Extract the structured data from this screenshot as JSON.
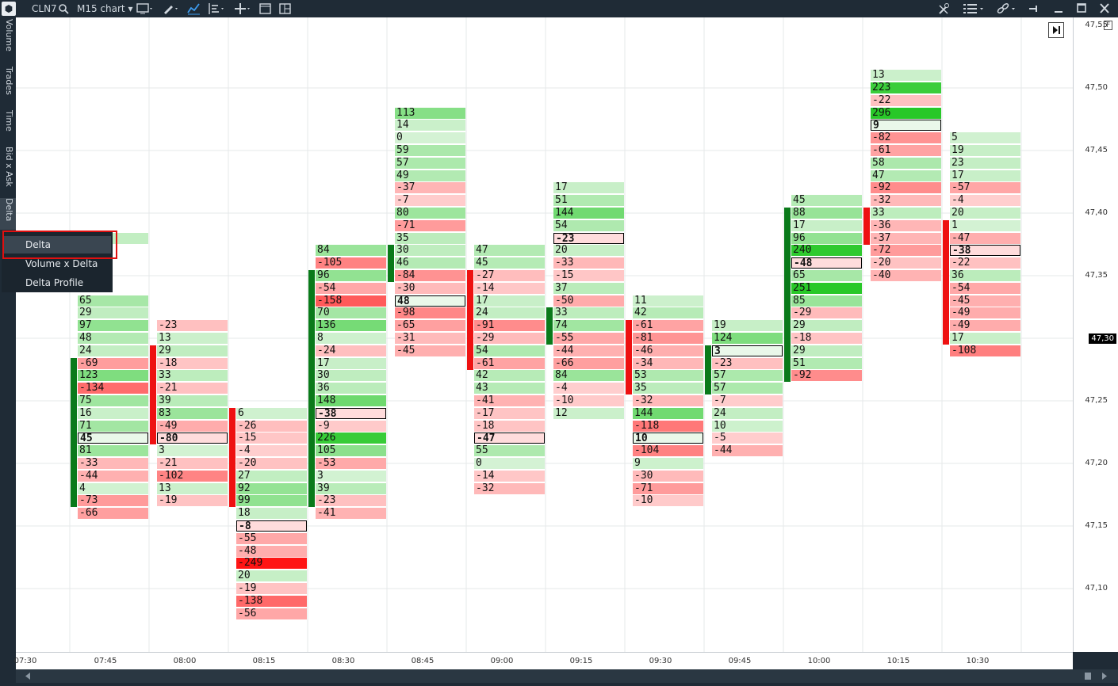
{
  "toolbar": {
    "symbol": "CLN7",
    "chart_type": "M15 chart",
    "chart_type_arrow": "▾",
    "icons": [
      "search-icon",
      "monitor-icon",
      "pencil-icon",
      "line-chart-icon",
      "indicators-icon",
      "crosshair-icon",
      "window-icon",
      "layout-icon",
      "tools-icon",
      "list-icon",
      "link-icon",
      "pin-icon",
      "minimize-icon",
      "maximize-icon",
      "close-icon"
    ]
  },
  "left_tabs": [
    "Volume",
    "Trades",
    "Time",
    "Bid x Ask",
    "Delta"
  ],
  "menu": {
    "items": [
      "Delta",
      "Volume x Delta",
      "Delta Profile"
    ],
    "selected": "Delta"
  },
  "price_axis": {
    "labels": [
      "47,55",
      "47,50",
      "47,45",
      "47,40",
      "47,35",
      "47,30",
      "47,25",
      "47,20",
      "47,15",
      "47,10"
    ],
    "current_price": "47,30",
    "flag": "F"
  },
  "time_axis": {
    "labels": [
      "07:30",
      "07:45",
      "08:00",
      "08:15",
      "08:30",
      "08:45",
      "09:00",
      "09:15",
      "09:30",
      "09:45",
      "10:00",
      "10:15",
      "10:30"
    ]
  },
  "colors": {
    "pos_bar": "#0a7a1a",
    "neg_bar": "#ee1111"
  },
  "chart_data": {
    "type": "table",
    "description_units": "delta per price tick (0.01), top price first",
    "top_price": 47.51,
    "tick": 0.01,
    "clusters": [
      {
        "time": "07:45",
        "top": 47.38,
        "bar": "pos",
        "barTop": 47.28,
        "barBottom": 47.17,
        "poc": "45",
        "values": [
          "26",
          "",
          "",
          "",
          "",
          "65",
          "29",
          "97",
          "48",
          "24",
          "-69",
          "123",
          "-134",
          "75",
          "16",
          "71",
          "45",
          "81",
          "-33",
          "-44",
          "4",
          "-73",
          "-66"
        ]
      },
      {
        "time": "08:00",
        "top": 47.31,
        "bar": "neg",
        "barTop": 47.29,
        "barBottom": 47.22,
        "poc": "-80",
        "values": [
          "-23",
          "13",
          "29",
          "-18",
          "33",
          "-21",
          "39",
          "83",
          "-49",
          "-80",
          "3",
          "-21",
          "-102",
          "13",
          "-19"
        ]
      },
      {
        "time": "08:15",
        "top": 47.24,
        "bar": "neg",
        "barTop": 47.24,
        "barBottom": 47.17,
        "poc": "-8",
        "values": [
          "6",
          "-26",
          "-15",
          "-4",
          "-20",
          "27",
          "92",
          "99",
          "18",
          "-8",
          "-55",
          "-48",
          "-249",
          "20",
          "-19",
          "-138",
          "-56"
        ]
      },
      {
        "time": "08:30",
        "top": 47.37,
        "bar": "pos",
        "barTop": 47.35,
        "barBottom": 47.17,
        "poc": "-38",
        "values": [
          "84",
          "-105",
          "96",
          "-54",
          "-158",
          "70",
          "136",
          "8",
          "-24",
          "17",
          "30",
          "36",
          "148",
          "-38",
          "-9",
          "226",
          "105",
          "-53",
          "3",
          "39",
          "-23",
          "-41"
        ]
      },
      {
        "time": "08:45",
        "top": 47.48,
        "bar": "pos",
        "barTop": 47.37,
        "barBottom": 47.35,
        "poc": "48",
        "values": [
          "113",
          "14",
          "0",
          "59",
          "57",
          "49",
          "-37",
          "-7",
          "80",
          "-71",
          "35",
          "30",
          "46",
          "-84",
          "-30",
          "48",
          "-98",
          "-65",
          "-31",
          "-45"
        ]
      },
      {
        "time": "09:00",
        "top": 47.37,
        "bar": "neg",
        "barTop": 47.35,
        "barBottom": 47.28,
        "poc": "-47",
        "values": [
          "47",
          "45",
          "-27",
          "-14",
          "17",
          "24",
          "-91",
          "-29",
          "54",
          "-61",
          "42",
          "43",
          "-41",
          "-17",
          "-18",
          "-47",
          "55",
          "0",
          "-14",
          "-32"
        ]
      },
      {
        "time": "09:15",
        "top": 47.42,
        "bar": "pos",
        "barTop": 47.32,
        "barBottom": 47.3,
        "poc": "-23",
        "values": [
          "17",
          "51",
          "144",
          "54",
          "-23",
          "20",
          "-33",
          "-15",
          "37",
          "-50",
          "33",
          "74",
          "-55",
          "-44",
          "-66",
          "84",
          "-4",
          "-10",
          "12"
        ]
      },
      {
        "time": "09:30",
        "top": 47.33,
        "bar": "neg",
        "barTop": 47.31,
        "barBottom": 47.26,
        "poc": "10",
        "values": [
          "11",
          "42",
          "-61",
          "-81",
          "-46",
          "-34",
          "53",
          "35",
          "-32",
          "144",
          "-118",
          "10",
          "-104",
          "9",
          "-30",
          "-71",
          "-10"
        ]
      },
      {
        "time": "09:45",
        "top": 47.31,
        "bar": "pos",
        "barTop": 47.29,
        "barBottom": 47.26,
        "poc": "3",
        "values": [
          "19",
          "124",
          "3",
          "-23",
          "57",
          "57",
          "-7",
          "24",
          "10",
          "-5",
          "-44"
        ]
      },
      {
        "time": "10:00",
        "top": 47.41,
        "bar": "pos",
        "barTop": 47.4,
        "barBottom": 47.27,
        "poc": "-48",
        "values": [
          "45",
          "88",
          "17",
          "96",
          "240",
          "-48",
          "65",
          "251",
          "85",
          "-29",
          "29",
          "-18",
          "29",
          "51",
          "-92"
        ]
      },
      {
        "time": "10:15",
        "top": 47.51,
        "bar": "neg",
        "barTop": 47.4,
        "barBottom": 47.38,
        "poc": "9",
        "values": [
          "13",
          "223",
          "-22",
          "296",
          "9",
          "-82",
          "-61",
          "58",
          "47",
          "-92",
          "-32",
          "33",
          "-36",
          "-37",
          "-72",
          "-20",
          "-40"
        ]
      },
      {
        "time": "10:30",
        "top": 47.46,
        "bar": "neg",
        "barTop": 47.39,
        "barBottom": 47.3,
        "poc": "-38",
        "values": [
          "5",
          "19",
          "23",
          "17",
          "-57",
          "-4",
          "20",
          "1",
          "-47",
          "-38",
          "-22",
          "36",
          "-54",
          "-45",
          "-49",
          "-49",
          "17",
          "-108"
        ]
      }
    ]
  }
}
